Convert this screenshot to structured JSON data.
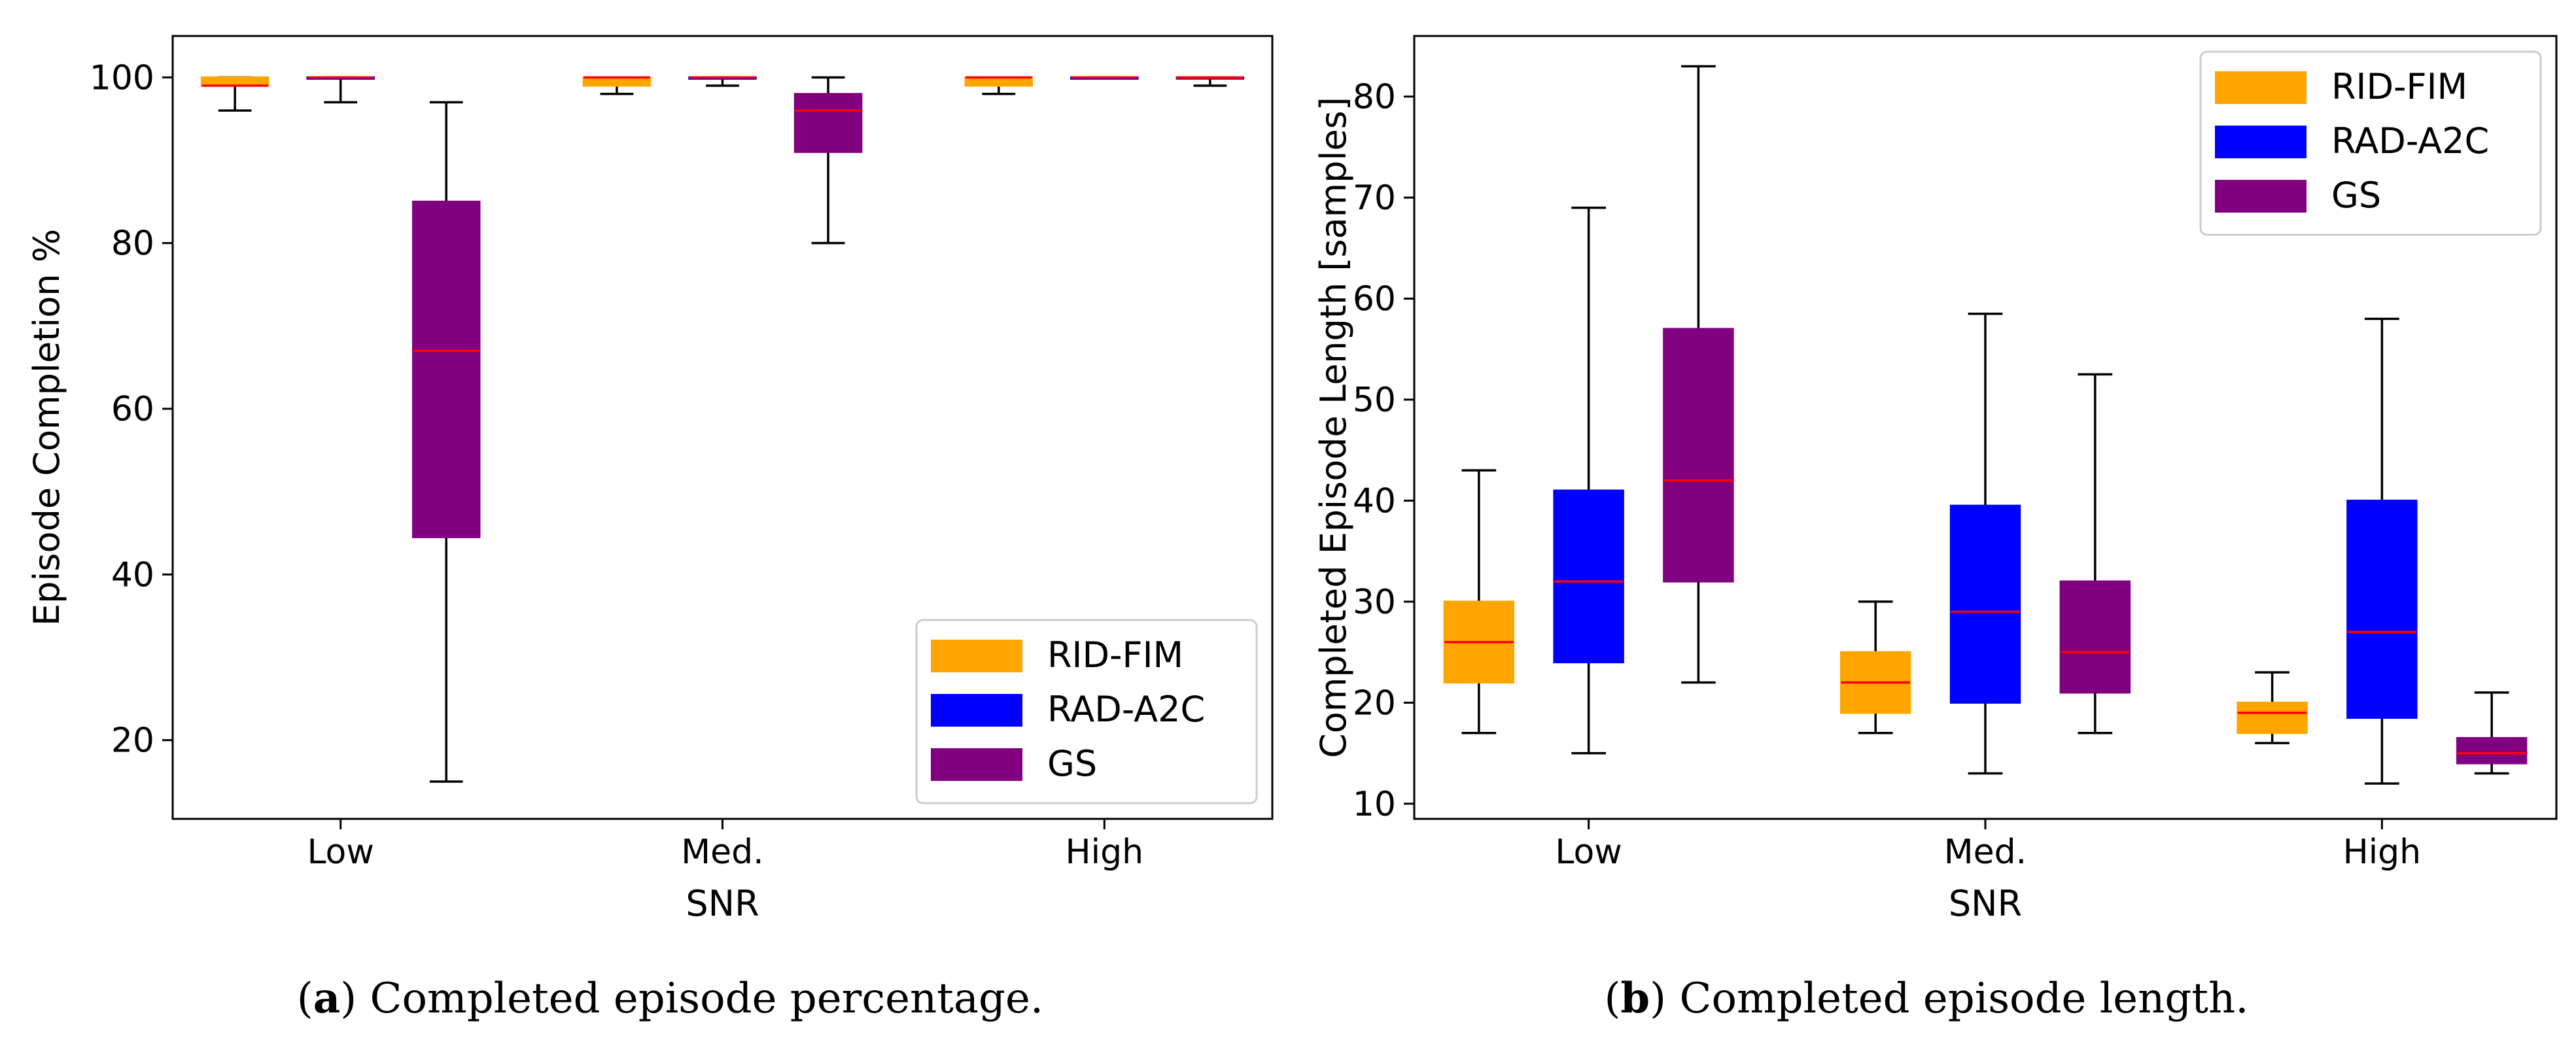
{
  "colors": {
    "RID-FIM": "#FFA500",
    "RAD-A2C": "#0000FF",
    "GS": "#800080",
    "median": "#FF0000",
    "whisker": "#000000"
  },
  "chart_data": [
    {
      "type": "boxplot",
      "caption_letter": "a",
      "caption_text": ") Completed episode percentage.",
      "caption_open": "(",
      "xlabel": "SNR",
      "ylabel": "Episode Completion %",
      "categories": [
        "Low",
        "Med.",
        "High"
      ],
      "ylim": [
        10.5,
        105
      ],
      "yticks": [
        "20",
        "40",
        "60",
        "80",
        "100"
      ],
      "legend_position": "lower-right",
      "series": [
        {
          "name": "RID-FIM",
          "boxes": [
            {
              "min": 96,
              "q1": 99,
              "median": 99,
              "q3": 100,
              "max": 100
            },
            {
              "min": 98,
              "q1": 99,
              "median": 100,
              "q3": 100,
              "max": 100
            },
            {
              "min": 98,
              "q1": 99,
              "median": 100,
              "q3": 100,
              "max": 100
            }
          ]
        },
        {
          "name": "RAD-A2C",
          "boxes": [
            {
              "min": 97,
              "q1": 100,
              "median": 100,
              "q3": 100,
              "max": 100
            },
            {
              "min": 99,
              "q1": 100,
              "median": 100,
              "q3": 100,
              "max": 100
            },
            {
              "min": 100,
              "q1": 100,
              "median": 100,
              "q3": 100,
              "max": 100
            }
          ]
        },
        {
          "name": "GS",
          "boxes": [
            {
              "min": 15,
              "q1": 44.5,
              "median": 67,
              "q3": 85,
              "max": 97
            },
            {
              "min": 80,
              "q1": 91,
              "median": 96,
              "q3": 98,
              "max": 100
            },
            {
              "min": 99,
              "q1": 100,
              "median": 100,
              "q3": 100,
              "max": 100
            }
          ]
        }
      ]
    },
    {
      "type": "boxplot",
      "caption_letter": "b",
      "caption_text": ") Completed episode length.",
      "caption_open": "(",
      "xlabel": "SNR",
      "ylabel": "Completed Episode Length [samples]",
      "categories": [
        "Low",
        "Med.",
        "High"
      ],
      "ylim": [
        8.5,
        86
      ],
      "yticks": [
        "10",
        "20",
        "30",
        "40",
        "50",
        "60",
        "70",
        "80"
      ],
      "legend_position": "upper-right",
      "series": [
        {
          "name": "RID-FIM",
          "boxes": [
            {
              "min": 17,
              "q1": 22,
              "median": 26,
              "q3": 30,
              "max": 43
            },
            {
              "min": 17,
              "q1": 19,
              "median": 22,
              "q3": 25,
              "max": 30
            },
            {
              "min": 16,
              "q1": 17,
              "median": 19,
              "q3": 20,
              "max": 23
            }
          ]
        },
        {
          "name": "RAD-A2C",
          "boxes": [
            {
              "min": 15,
              "q1": 24,
              "median": 32,
              "q3": 41,
              "max": 69
            },
            {
              "min": 13,
              "q1": 20,
              "median": 29,
              "q3": 39.5,
              "max": 58.5
            },
            {
              "min": 12,
              "q1": 18.5,
              "median": 27,
              "q3": 40,
              "max": 58
            }
          ]
        },
        {
          "name": "GS",
          "boxes": [
            {
              "min": 22,
              "q1": 32,
              "median": 42,
              "q3": 57,
              "max": 83
            },
            {
              "min": 17,
              "q1": 21,
              "median": 25,
              "q3": 32,
              "max": 52.5
            },
            {
              "min": 13,
              "q1": 14,
              "median": 15,
              "q3": 16.5,
              "max": 21
            }
          ]
        }
      ]
    }
  ]
}
